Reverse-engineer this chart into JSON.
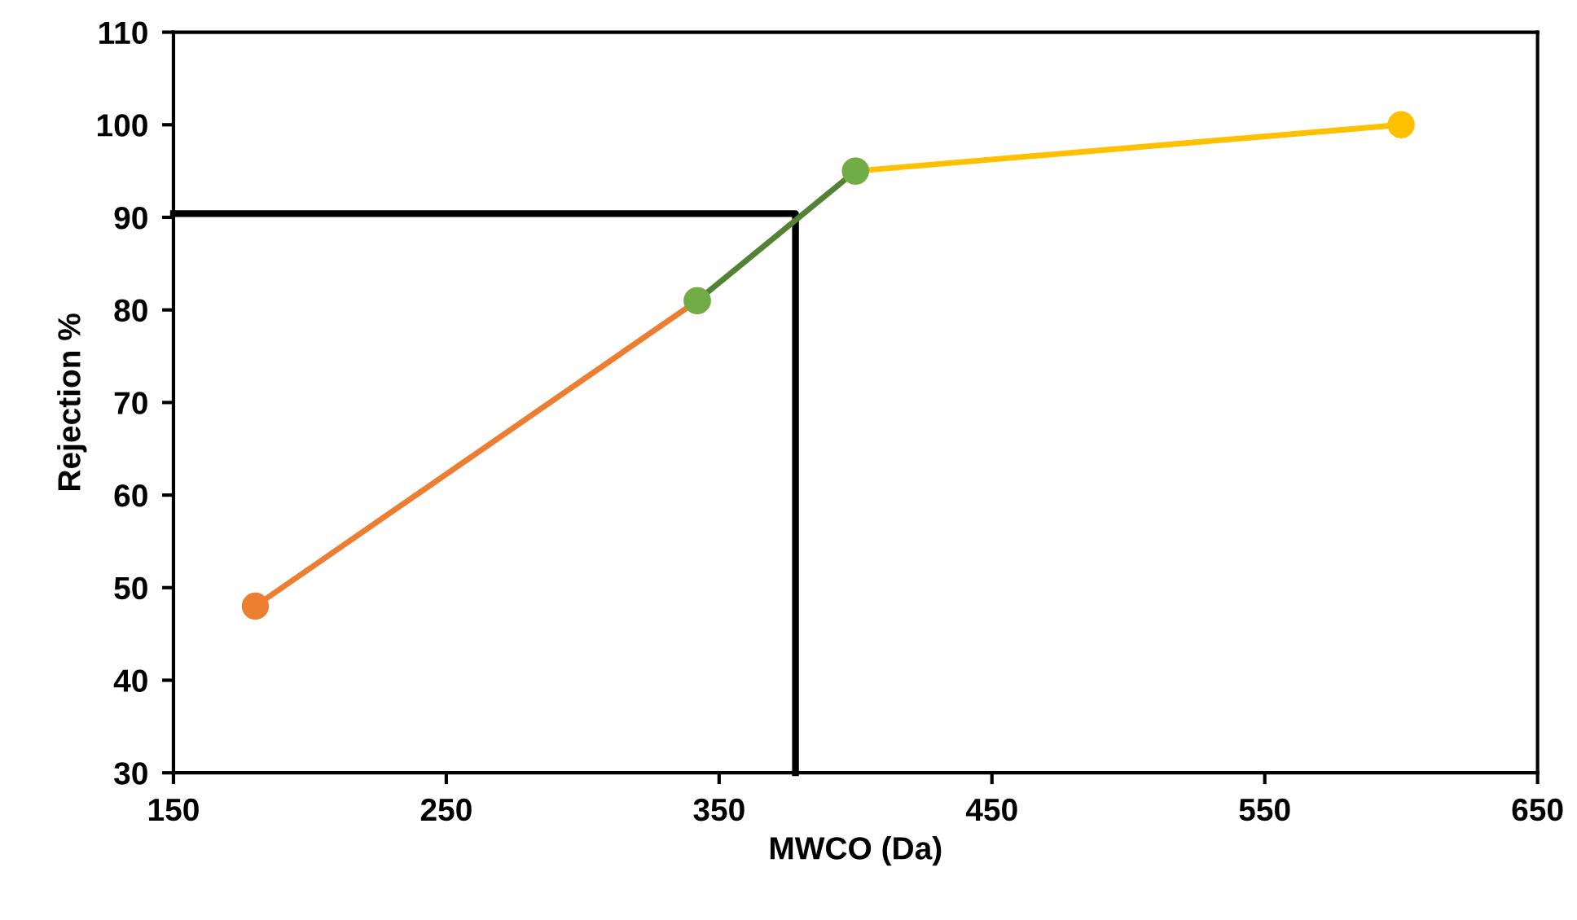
{
  "chart_data": {
    "type": "line",
    "xlabel": "MWCO (Da)",
    "ylabel": "Rejection %",
    "xlim": [
      150,
      650
    ],
    "xticks": [
      150,
      250,
      350,
      450,
      550,
      650
    ],
    "ylim": [
      30,
      110
    ],
    "yticks": [
      30,
      40,
      50,
      60,
      70,
      80,
      90,
      100,
      110
    ],
    "grid": false,
    "legend": false,
    "series": [
      {
        "color": "#000000",
        "x": [
          150,
          378,
          378
        ],
        "values": [
          90.4,
          90.4,
          30
        ],
        "marker": "none"
      },
      {
        "color": "#ed7d31",
        "x": [
          180,
          342
        ],
        "values": [
          48,
          81
        ],
        "marker": "circle"
      },
      {
        "color": "#ffc000",
        "x": [
          400,
          600
        ],
        "values": [
          95,
          100
        ],
        "marker": "circle"
      },
      {
        "color": "#548235",
        "x": [
          342,
          400
        ],
        "values": [
          81,
          95
        ],
        "marker": "circle",
        "colors": [
          "#70ad47",
          "#70ad47"
        ]
      }
    ]
  }
}
